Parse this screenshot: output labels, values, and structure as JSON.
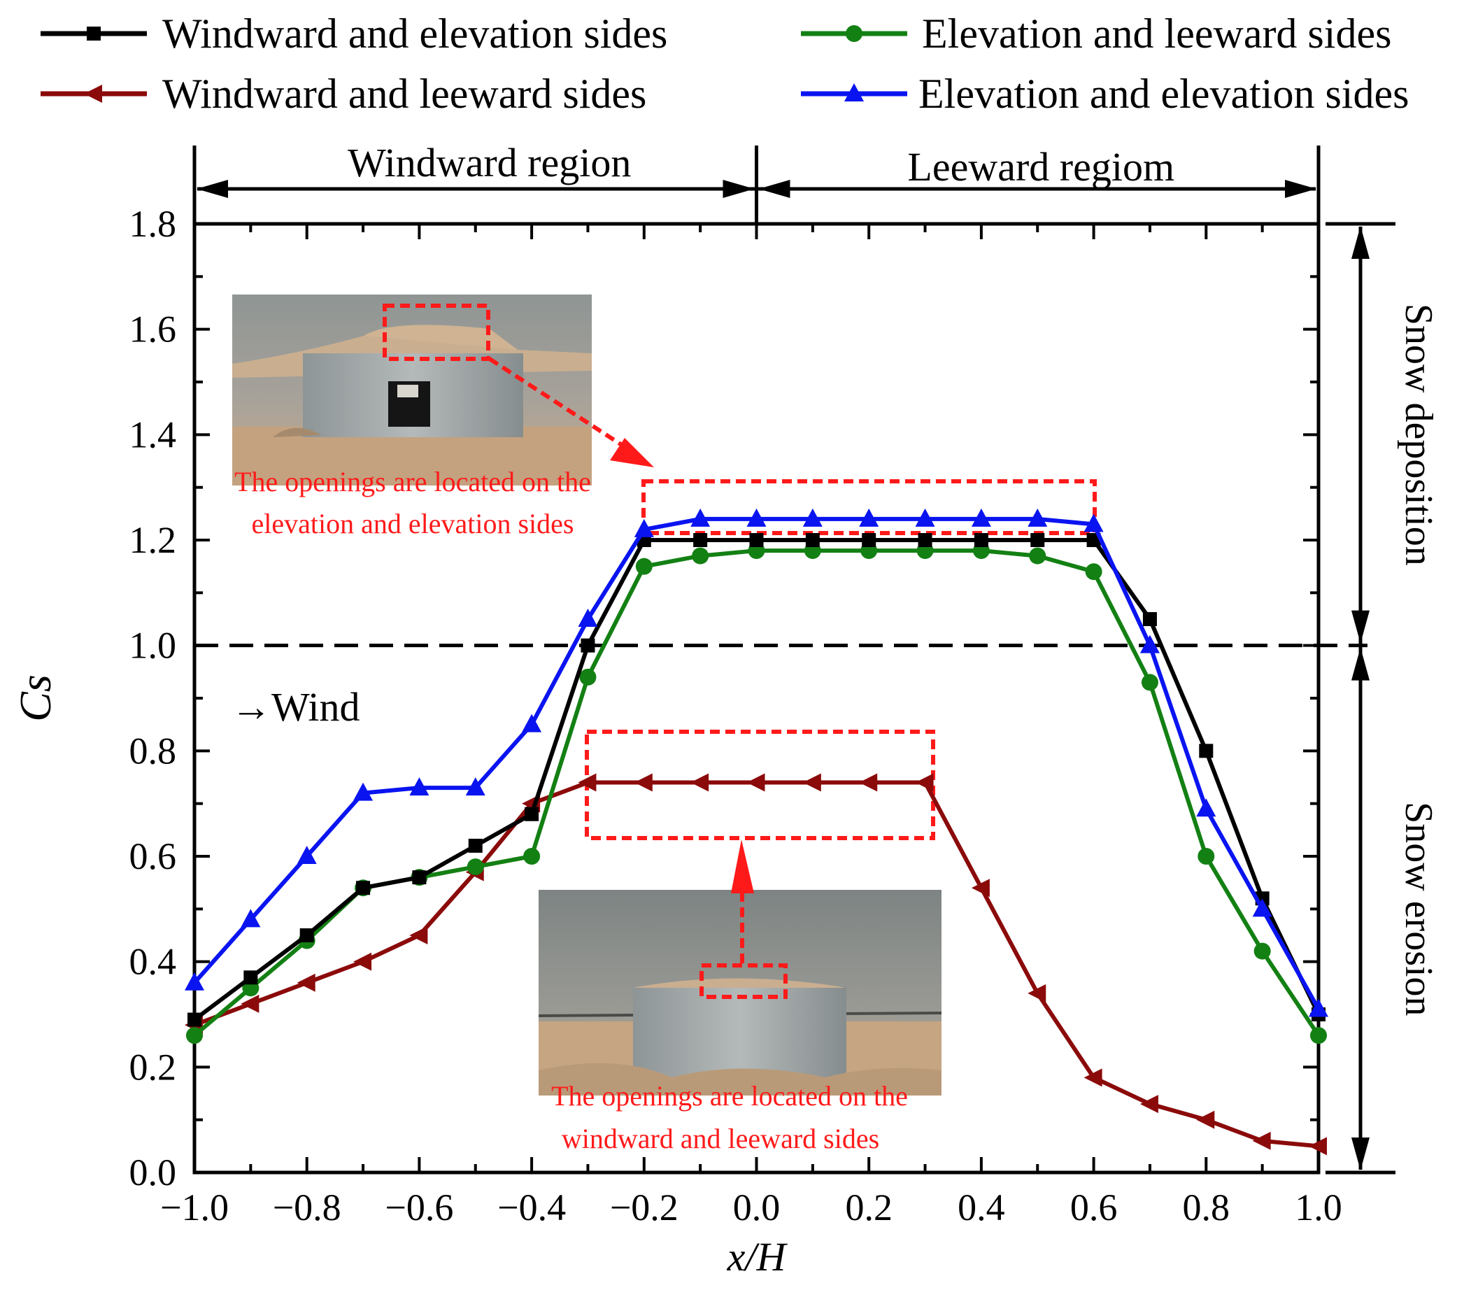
{
  "chart_data": {
    "type": "line",
    "xlabel": "x/H",
    "ylabel": "Cs",
    "xlim": [
      -1.0,
      1.0
    ],
    "ylim": [
      0.0,
      1.8
    ],
    "x_ticks": [
      "−1.0",
      "−0.8",
      "−0.6",
      "−0.4",
      "−0.2",
      "0.0",
      "0.2",
      "0.4",
      "0.6",
      "0.8",
      "1.0"
    ],
    "y_ticks": [
      "0.0",
      "0.2",
      "0.4",
      "0.6",
      "0.8",
      "1.0",
      "1.2",
      "1.4",
      "1.6",
      "1.8"
    ],
    "reference_line_y": 1.0,
    "series": [
      {
        "name": "Windward and elevation sides",
        "color": "#000000",
        "marker": "square",
        "x": [
          -1.0,
          -0.9,
          -0.8,
          -0.7,
          -0.6,
          -0.5,
          -0.4,
          -0.3,
          -0.2,
          -0.1,
          0.0,
          0.1,
          0.2,
          0.3,
          0.4,
          0.5,
          0.6,
          0.7,
          0.8,
          0.9,
          1.0
        ],
        "y": [
          0.29,
          0.37,
          0.45,
          0.54,
          0.56,
          0.62,
          0.68,
          1.0,
          1.2,
          1.2,
          1.2,
          1.2,
          1.2,
          1.2,
          1.2,
          1.2,
          1.2,
          1.05,
          0.8,
          0.52,
          0.3
        ]
      },
      {
        "name": "Elevation and leeward sides",
        "color": "#138013",
        "marker": "circle",
        "x": [
          -1.0,
          -0.9,
          -0.8,
          -0.7,
          -0.6,
          -0.5,
          -0.4,
          -0.3,
          -0.2,
          -0.1,
          0.0,
          0.1,
          0.2,
          0.3,
          0.4,
          0.5,
          0.6,
          0.7,
          0.8,
          0.9,
          1.0
        ],
        "y": [
          0.26,
          0.35,
          0.44,
          0.54,
          0.56,
          0.58,
          0.6,
          0.94,
          1.15,
          1.17,
          1.18,
          1.18,
          1.18,
          1.18,
          1.18,
          1.17,
          1.14,
          0.93,
          0.6,
          0.42,
          0.26
        ]
      },
      {
        "name": "Windward and leeward sides",
        "color": "#8b0a0a",
        "marker": "triangle-left",
        "x": [
          -1.0,
          -0.9,
          -0.8,
          -0.7,
          -0.6,
          -0.5,
          -0.4,
          -0.3,
          -0.2,
          -0.1,
          0.0,
          0.1,
          0.2,
          0.3,
          0.4,
          0.5,
          0.6,
          0.7,
          0.8,
          0.9,
          1.0
        ],
        "y": [
          0.28,
          0.32,
          0.36,
          0.4,
          0.45,
          0.57,
          0.7,
          0.74,
          0.74,
          0.74,
          0.74,
          0.74,
          0.74,
          0.74,
          0.54,
          0.34,
          0.18,
          0.13,
          0.1,
          0.06,
          0.05
        ]
      },
      {
        "name": "Elevation and elevation sides",
        "color": "#0a14f0",
        "marker": "triangle-up",
        "x": [
          -1.0,
          -0.9,
          -0.8,
          -0.7,
          -0.6,
          -0.5,
          -0.4,
          -0.3,
          -0.2,
          -0.1,
          0.0,
          0.1,
          0.2,
          0.3,
          0.4,
          0.5,
          0.6,
          0.7,
          0.8,
          0.9,
          1.0
        ],
        "y": [
          0.36,
          0.48,
          0.6,
          0.72,
          0.73,
          0.73,
          0.85,
          1.05,
          1.22,
          1.24,
          1.24,
          1.24,
          1.24,
          1.24,
          1.24,
          1.24,
          1.23,
          1.0,
          0.69,
          0.5,
          0.31
        ]
      }
    ],
    "annotations": {
      "windward_region": "Windward region",
      "leeward_region": "Leeward regiom",
      "snow_deposition": "Snow deposition",
      "snow_erosion": "Snow erosion",
      "wind": "→Wind",
      "note_elevation_line1": "The openings are located on the",
      "note_elevation_line2": "elevation and elevation sides",
      "note_windward_line1": "The openings are located on the",
      "note_windward_line2": "windward and leeward sides"
    },
    "legend_position": "top"
  }
}
